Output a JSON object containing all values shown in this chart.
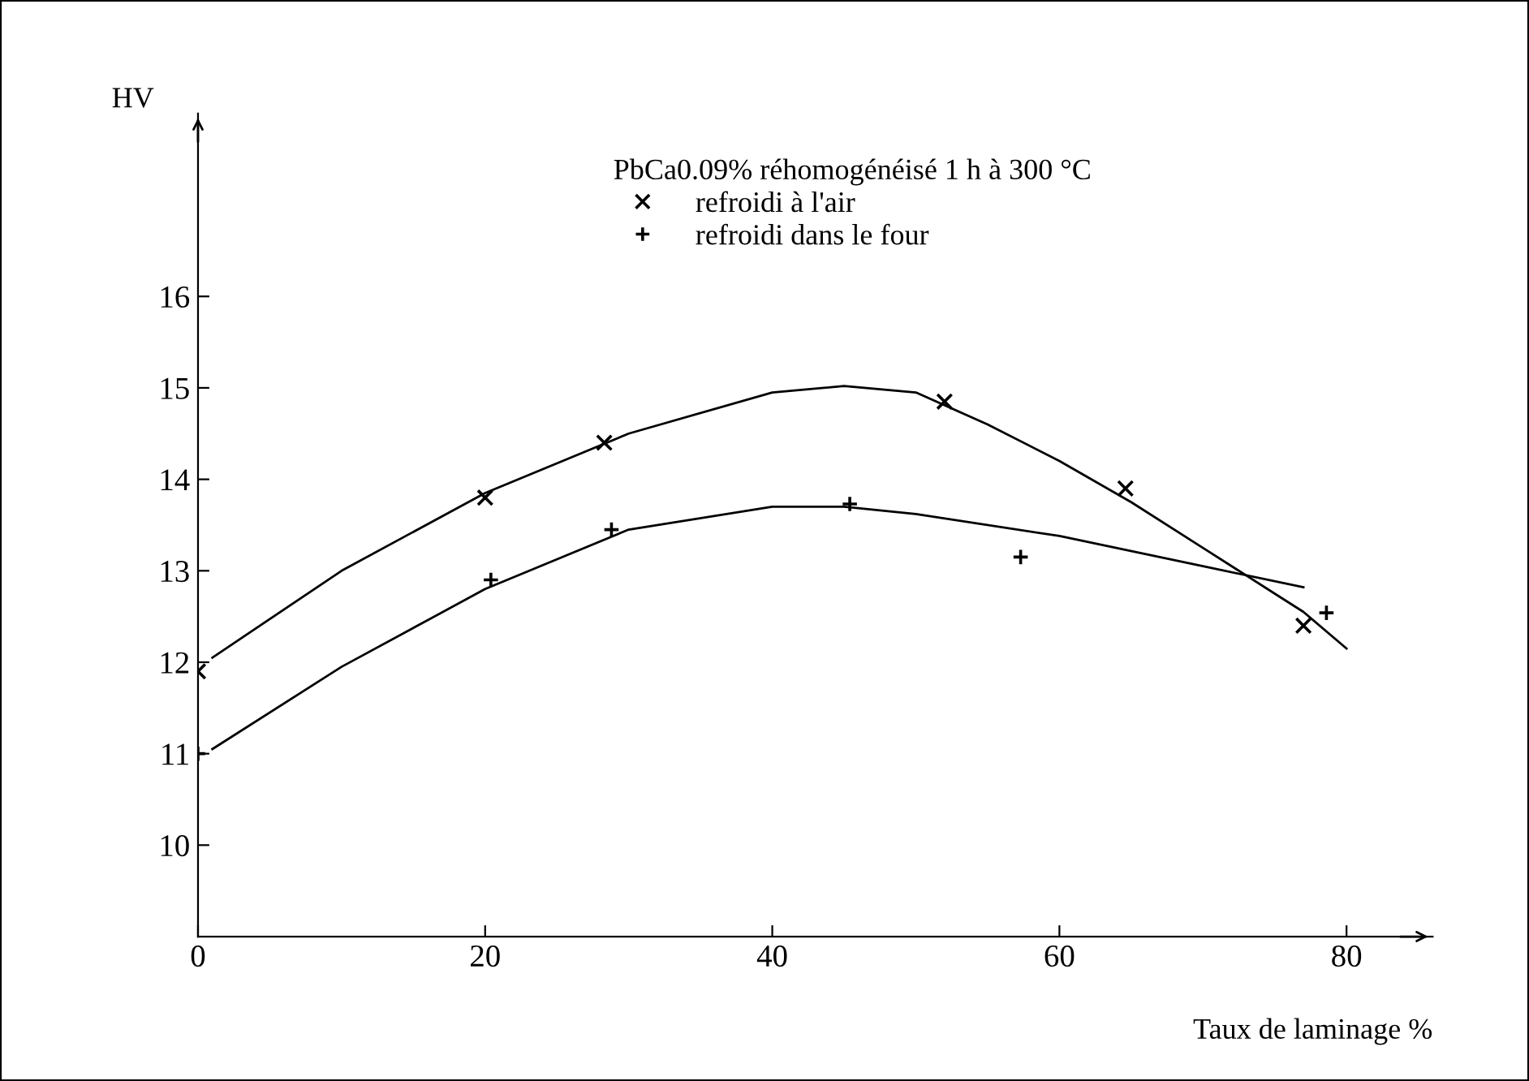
{
  "chart_data": {
    "type": "scatter",
    "xlabel": "Taux de laminage %",
    "ylabel": "HV",
    "legend_title": "PbCa0.09% réhomogénéisé 1 h à 300 °C",
    "xlim": [
      0,
      86
    ],
    "ylim": [
      9,
      18
    ],
    "xticks": [
      0,
      20,
      40,
      60,
      80
    ],
    "yticks": [
      10,
      11,
      12,
      13,
      14,
      15,
      16
    ],
    "grid": false,
    "legend": "top",
    "series": [
      {
        "name": "refroidi à l'air",
        "marker": "cross",
        "color": "#000000",
        "x": [
          0,
          20,
          28.3,
          52,
          64.6,
          77
        ],
        "values": [
          11.9,
          13.8,
          14.4,
          14.85,
          13.9,
          12.4
        ]
      },
      {
        "name": "refroidi dans le four",
        "marker": "plus",
        "color": "#000000",
        "x": [
          0,
          20.4,
          28.8,
          45.4,
          57.3,
          78.6
        ],
        "values": [
          11.0,
          12.9,
          13.45,
          13.73,
          13.15,
          12.54
        ]
      },
      {
        "type": "line",
        "marker": "none",
        "line_style": "solid",
        "color": "#000000",
        "x": [
          1,
          10,
          20,
          30,
          40,
          45,
          50,
          55,
          60,
          65,
          70,
          75,
          77,
          80
        ],
        "values": [
          12.05,
          13.0,
          13.85,
          14.5,
          14.95,
          15.02,
          14.95,
          14.6,
          14.2,
          13.75,
          13.25,
          12.75,
          12.55,
          12.15
        ]
      },
      {
        "type": "line",
        "marker": "none",
        "line_style": "solid",
        "color": "#000000",
        "x": [
          1,
          10,
          20,
          30,
          40,
          45,
          50,
          60,
          70,
          77
        ],
        "values": [
          11.05,
          11.95,
          12.8,
          13.45,
          13.7,
          13.7,
          13.62,
          13.38,
          13.05,
          12.82
        ]
      }
    ]
  }
}
